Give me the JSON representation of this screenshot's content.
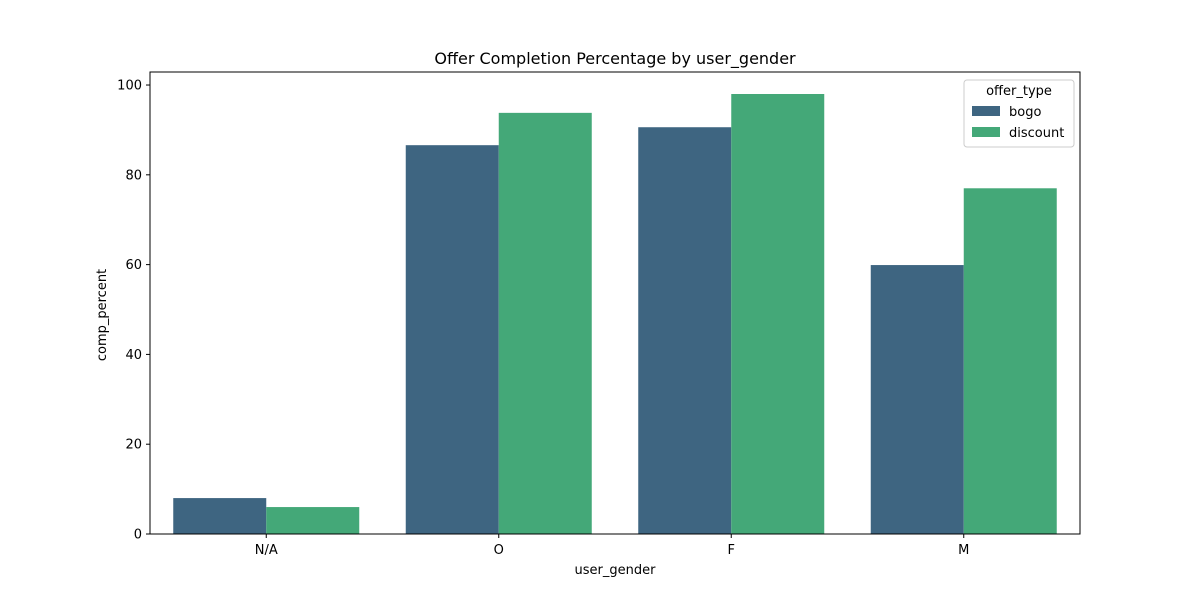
{
  "chart_data": {
    "type": "bar",
    "title": "Offer Completion Percentage by user_gender",
    "xlabel": "user_gender",
    "ylabel": "comp_percent",
    "categories": [
      "N/A",
      "O",
      "F",
      "M"
    ],
    "series": [
      {
        "name": "bogo",
        "values": [
          8.0,
          86.6,
          90.6,
          59.9
        ],
        "color": "#3e6581"
      },
      {
        "name": "discount",
        "values": [
          6.0,
          93.8,
          98.0,
          77.0
        ],
        "color": "#44a878"
      }
    ],
    "ylim": [
      0,
      102.9
    ],
    "yticks": [
      0,
      20,
      40,
      60,
      80,
      100
    ],
    "grid": false,
    "legend": {
      "title": "offer_type",
      "placement": "top-right"
    }
  }
}
